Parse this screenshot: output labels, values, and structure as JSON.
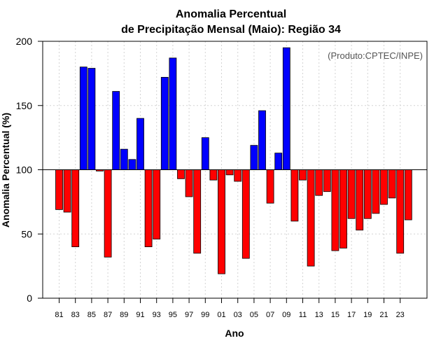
{
  "chart_data": {
    "type": "bar",
    "title": "Anomalia Percentual",
    "subtitle": "de Precipitação Mensal (Maio): Região 34",
    "xlabel": "Ano",
    "ylabel": "Anomalia Percentual (%)",
    "credit": "(Produto:CPTEC/INPE)",
    "baseline": 100,
    "ylim": [
      0,
      200
    ],
    "yticks": [
      "0",
      "50",
      "100",
      "150",
      "200"
    ],
    "grid": true,
    "colors": {
      "above": "#0000ff",
      "below": "#ff0000",
      "outline": "#000000",
      "grid": "#d3d3d3"
    },
    "tick_labels": [
      "81",
      "83",
      "85",
      "87",
      "89",
      "91",
      "93",
      "95",
      "97",
      "99",
      "01",
      "03",
      "05",
      "07",
      "09",
      "11",
      "13",
      "15",
      "17",
      "19",
      "21",
      "23"
    ],
    "categories": [
      "1981",
      "1982",
      "1983",
      "1984",
      "1985",
      "1986",
      "1987",
      "1988",
      "1989",
      "1990",
      "1991",
      "1992",
      "1993",
      "1994",
      "1995",
      "1996",
      "1997",
      "1998",
      "1999",
      "2000",
      "2001",
      "2002",
      "2003",
      "2004",
      "2005",
      "2006",
      "2007",
      "2008",
      "2009",
      "2010",
      "2011",
      "2012",
      "2013",
      "2014",
      "2015",
      "2016",
      "2017",
      "2018",
      "2019",
      "2020",
      "2021",
      "2022",
      "2023",
      "2024"
    ],
    "values": [
      69,
      67,
      40,
      180,
      179,
      99,
      32,
      161,
      116,
      108,
      140,
      40,
      46,
      172,
      187,
      93,
      79,
      35,
      125,
      92,
      19,
      96,
      91,
      31,
      119,
      146,
      74,
      113,
      195,
      60,
      92,
      25,
      80,
      83,
      37,
      39,
      62,
      53,
      62,
      66,
      73,
      78,
      35,
      61
    ]
  }
}
